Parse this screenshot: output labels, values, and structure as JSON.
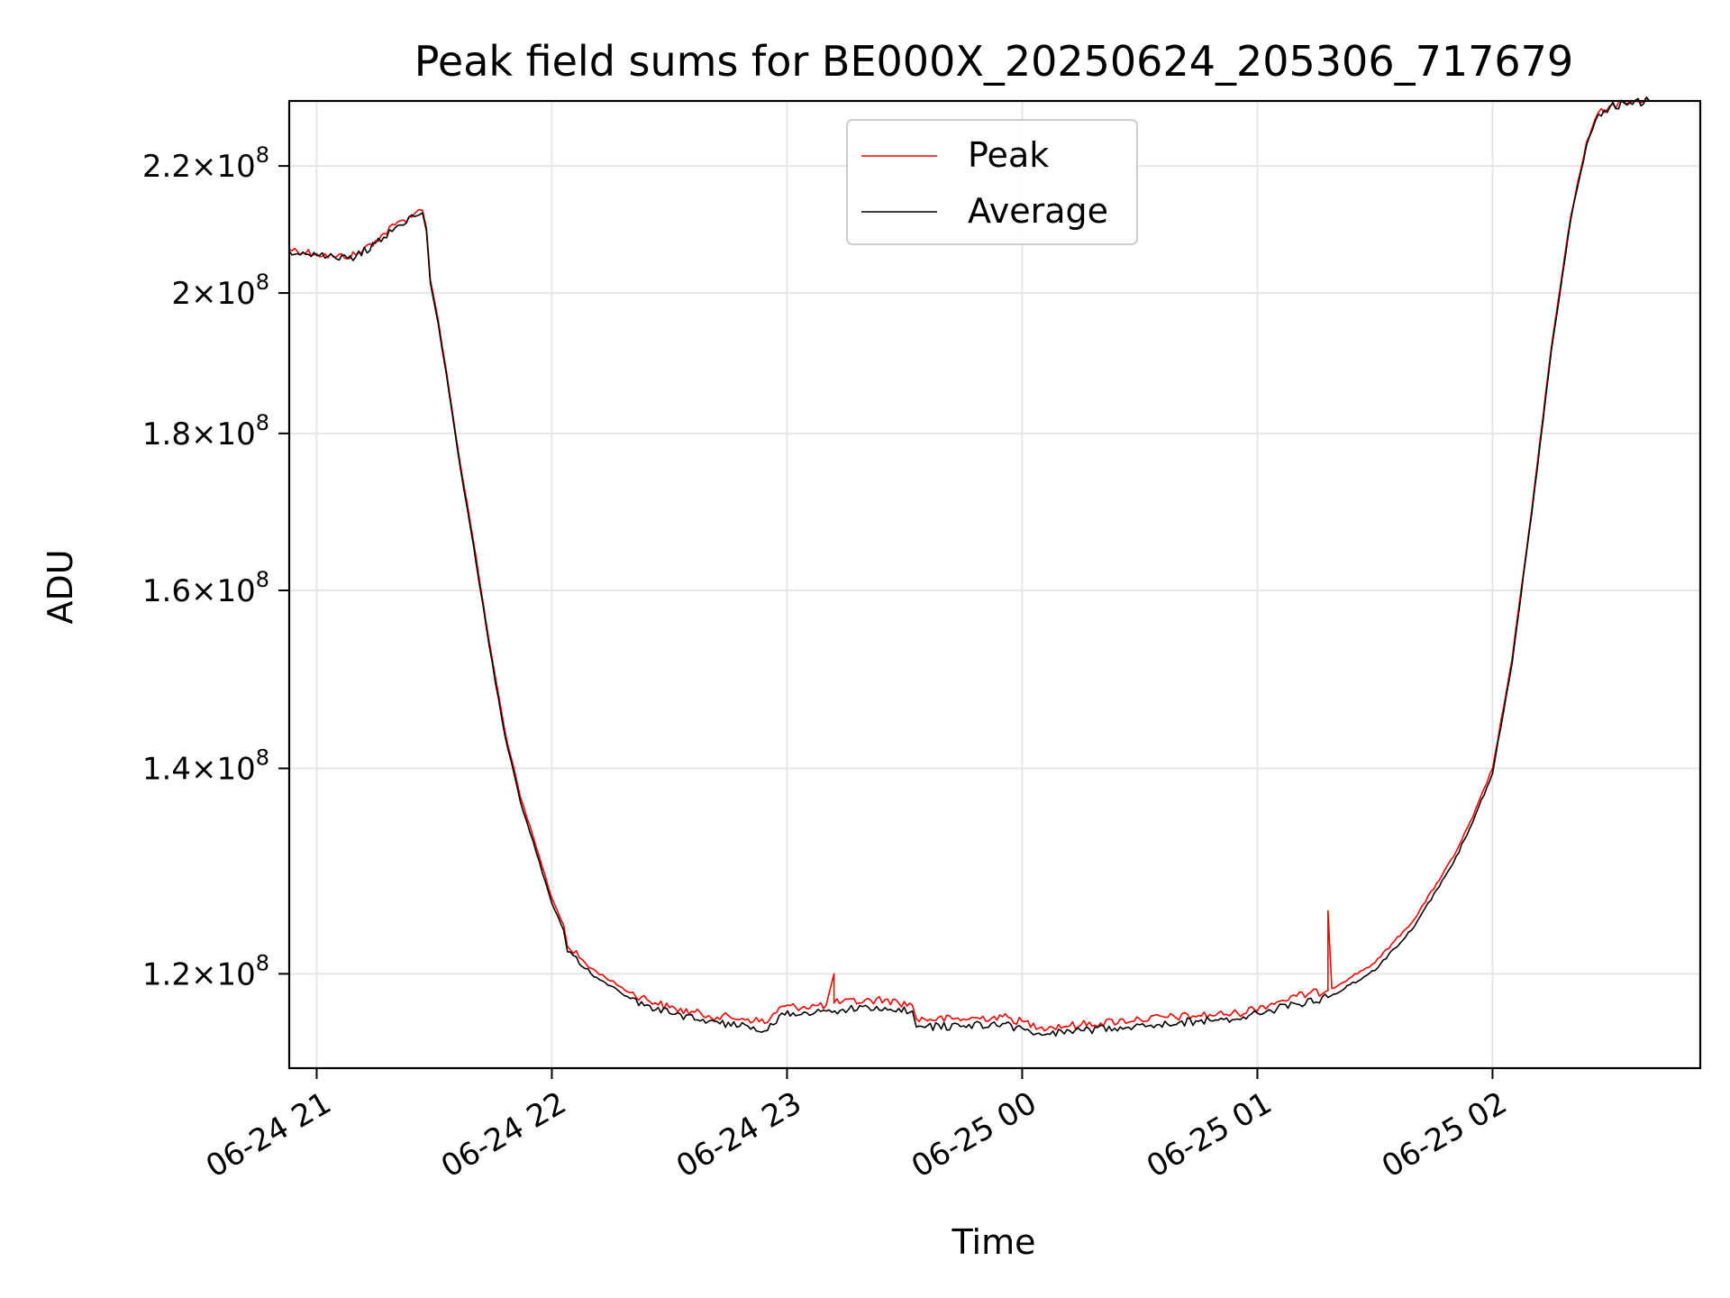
{
  "chart_data": {
    "type": "line",
    "title": "Peak field sums for BE000X_20250624_205306_717679",
    "xlabel": "Time",
    "ylabel": "ADU",
    "yscale": "log",
    "xlim": [
      "2025-06-24 20:53",
      "2025-06-25 02:53"
    ],
    "ylim": [
      111800000.0,
      231000000.0
    ],
    "grid": true,
    "legend_position": "upper center",
    "x_ticks": [
      {
        "value": "2025-06-24 21:00",
        "label": "06-24 21"
      },
      {
        "value": "2025-06-24 22:00",
        "label": "06-24 22"
      },
      {
        "value": "2025-06-24 23:00",
        "label": "06-24 23"
      },
      {
        "value": "2025-06-25 00:00",
        "label": "06-25 00"
      },
      {
        "value": "2025-06-25 01:00",
        "label": "06-25 01"
      },
      {
        "value": "2025-06-25 02:00",
        "label": "06-25 02"
      }
    ],
    "y_ticks": [
      {
        "value": 120000000.0,
        "mantissa": "1.2"
      },
      {
        "value": 140000000.0,
        "mantissa": "1.4"
      },
      {
        "value": 160000000.0,
        "mantissa": "1.6"
      },
      {
        "value": 180000000.0,
        "mantissa": "1.8"
      },
      {
        "value": 200000000.0,
        "mantissa": "2"
      },
      {
        "value": 220000000.0,
        "mantissa": "2.2"
      }
    ],
    "tick_label_base": "10",
    "tick_label_exponent": "8",
    "series": [
      {
        "name": "Peak",
        "color": "#ff0000",
        "points": [
          [
            "2025-06-24 20:53",
            206700000.0
          ],
          [
            "2025-06-24 21:00",
            206000000.0
          ],
          [
            "2025-06-24 21:05",
            205500000.0
          ],
          [
            "2025-06-24 21:10",
            205800000.0
          ],
          [
            "2025-06-24 21:15",
            208000000.0
          ],
          [
            "2025-06-24 21:20",
            210500000.0
          ],
          [
            "2025-06-24 21:25",
            212300000.0
          ],
          [
            "2025-06-24 21:27",
            212800000.0
          ],
          [
            "2025-06-24 21:28",
            210000000.0
          ],
          [
            "2025-06-24 21:29",
            202000000.0
          ],
          [
            "2025-06-24 21:31",
            196000000.0
          ],
          [
            "2025-06-24 21:33",
            189000000.0
          ],
          [
            "2025-06-24 21:36",
            178000000.0
          ],
          [
            "2025-06-24 21:40",
            166000000.0
          ],
          [
            "2025-06-24 21:44",
            154000000.0
          ],
          [
            "2025-06-24 21:48",
            144000000.0
          ],
          [
            "2025-06-24 21:52",
            137000000.0
          ],
          [
            "2025-06-24 21:56",
            132000000.0
          ],
          [
            "2025-06-24 22:00",
            127000000.0
          ],
          [
            "2025-06-24 22:03",
            124500000.0
          ],
          [
            "2025-06-24 22:04",
            122500000.0
          ],
          [
            "2025-06-24 22:10",
            120500000.0
          ],
          [
            "2025-06-24 22:20",
            118300000.0
          ],
          [
            "2025-06-24 22:30",
            117000000.0
          ],
          [
            "2025-06-24 22:40",
            116300000.0
          ],
          [
            "2025-06-24 22:50",
            116000000.0
          ],
          [
            "2025-06-24 22:55",
            115700000.0
          ],
          [
            "2025-06-24 22:58",
            117000000.0
          ],
          [
            "2025-06-24 23:10",
            117200000.0
          ],
          [
            "2025-06-24 23:12",
            120000000.0
          ],
          [
            "2025-06-24 23:12",
            117400000.0
          ],
          [
            "2025-06-24 23:25",
            117700000.0
          ],
          [
            "2025-06-24 23:32",
            117200000.0
          ],
          [
            "2025-06-24 23:33",
            116000000.0
          ],
          [
            "2025-06-24 23:45",
            116000000.0
          ],
          [
            "2025-06-24 23:55",
            116200000.0
          ],
          [
            "2025-06-25 00:05",
            115300000.0
          ],
          [
            "2025-06-25 00:15",
            115500000.0
          ],
          [
            "2025-06-25 00:30",
            116000000.0
          ],
          [
            "2025-06-25 00:45",
            116300000.0
          ],
          [
            "2025-06-25 00:55",
            116500000.0
          ],
          [
            "2025-06-25 01:05",
            117500000.0
          ],
          [
            "2025-06-25 01:10",
            118000000.0
          ],
          [
            "2025-06-25 01:18",
            118500000.0
          ],
          [
            "2025-06-25 01:18",
            125800000.0
          ],
          [
            "2025-06-25 01:19",
            118700000.0
          ],
          [
            "2025-06-25 01:30",
            121000000.0
          ],
          [
            "2025-06-25 01:40",
            125000000.0
          ],
          [
            "2025-06-25 01:50",
            131000000.0
          ],
          [
            "2025-06-25 01:55",
            135000000.0
          ],
          [
            "2025-06-25 02:00",
            140000000.0
          ],
          [
            "2025-06-25 02:05",
            152000000.0
          ],
          [
            "2025-06-25 02:10",
            170000000.0
          ],
          [
            "2025-06-25 02:15",
            192000000.0
          ],
          [
            "2025-06-25 02:20",
            212000000.0
          ],
          [
            "2025-06-25 02:24",
            224000000.0
          ],
          [
            "2025-06-25 02:27",
            229000000.0
          ],
          [
            "2025-06-25 02:30",
            230200000.0
          ],
          [
            "2025-06-25 02:35",
            230800000.0
          ],
          [
            "2025-06-25 02:40",
            231000000.0
          ]
        ]
      },
      {
        "name": "Average",
        "color": "#000000",
        "points": [
          [
            "2025-06-24 20:53",
            206400000.0
          ],
          [
            "2025-06-24 21:00",
            205700000.0
          ],
          [
            "2025-06-24 21:05",
            205200000.0
          ],
          [
            "2025-06-24 21:10",
            205500000.0
          ],
          [
            "2025-06-24 21:15",
            207600000.0
          ],
          [
            "2025-06-24 21:20",
            210000000.0
          ],
          [
            "2025-06-24 21:25",
            211800000.0
          ],
          [
            "2025-06-24 21:27",
            212400000.0
          ],
          [
            "2025-06-24 21:28",
            209500000.0
          ],
          [
            "2025-06-24 21:29",
            201500000.0
          ],
          [
            "2025-06-24 21:31",
            195500000.0
          ],
          [
            "2025-06-24 21:33",
            188500000.0
          ],
          [
            "2025-06-24 21:36",
            177500000.0
          ],
          [
            "2025-06-24 21:40",
            165500000.0
          ],
          [
            "2025-06-24 21:44",
            153500000.0
          ],
          [
            "2025-06-24 21:48",
            143500000.0
          ],
          [
            "2025-06-24 21:52",
            136500000.0
          ],
          [
            "2025-06-24 21:56",
            131500000.0
          ],
          [
            "2025-06-24 22:00",
            126500000.0
          ],
          [
            "2025-06-24 22:03",
            124000000.0
          ],
          [
            "2025-06-24 22:04",
            122000000.0
          ],
          [
            "2025-06-24 22:10",
            120000000.0
          ],
          [
            "2025-06-24 22:20",
            117800000.0
          ],
          [
            "2025-06-24 22:30",
            116500000.0
          ],
          [
            "2025-06-24 22:40",
            115800000.0
          ],
          [
            "2025-06-24 22:50",
            115400000.0
          ],
          [
            "2025-06-24 22:55",
            115000000.0
          ],
          [
            "2025-06-24 22:58",
            116300000.0
          ],
          [
            "2025-06-24 23:10",
            116700000.0
          ],
          [
            "2025-06-24 23:25",
            117000000.0
          ],
          [
            "2025-06-24 23:32",
            116700000.0
          ],
          [
            "2025-06-24 23:33",
            115300000.0
          ],
          [
            "2025-06-24 23:45",
            115400000.0
          ],
          [
            "2025-06-24 23:55",
            115600000.0
          ],
          [
            "2025-06-25 00:05",
            114600000.0
          ],
          [
            "2025-06-25 00:15",
            115000000.0
          ],
          [
            "2025-06-25 00:30",
            115500000.0
          ],
          [
            "2025-06-25 00:45",
            115800000.0
          ],
          [
            "2025-06-25 00:55",
            116000000.0
          ],
          [
            "2025-06-25 01:05",
            116900000.0
          ],
          [
            "2025-06-25 01:10",
            117300000.0
          ],
          [
            "2025-06-25 01:18",
            117900000.0
          ],
          [
            "2025-06-25 01:30",
            120300000.0
          ],
          [
            "2025-06-25 01:40",
            124300000.0
          ],
          [
            "2025-06-25 01:50",
            130400000.0
          ],
          [
            "2025-06-25 01:55",
            134500000.0
          ],
          [
            "2025-06-25 02:00",
            139500000.0
          ],
          [
            "2025-06-25 02:05",
            151500000.0
          ],
          [
            "2025-06-25 02:10",
            169500000.0
          ],
          [
            "2025-06-25 02:15",
            191500000.0
          ],
          [
            "2025-06-25 02:20",
            211500000.0
          ],
          [
            "2025-06-25 02:24",
            223500000.0
          ],
          [
            "2025-06-25 02:27",
            228700000.0
          ],
          [
            "2025-06-25 02:30",
            230000000.0
          ],
          [
            "2025-06-25 02:35",
            230700000.0
          ],
          [
            "2025-06-25 02:40",
            231000000.0
          ]
        ]
      }
    ]
  }
}
